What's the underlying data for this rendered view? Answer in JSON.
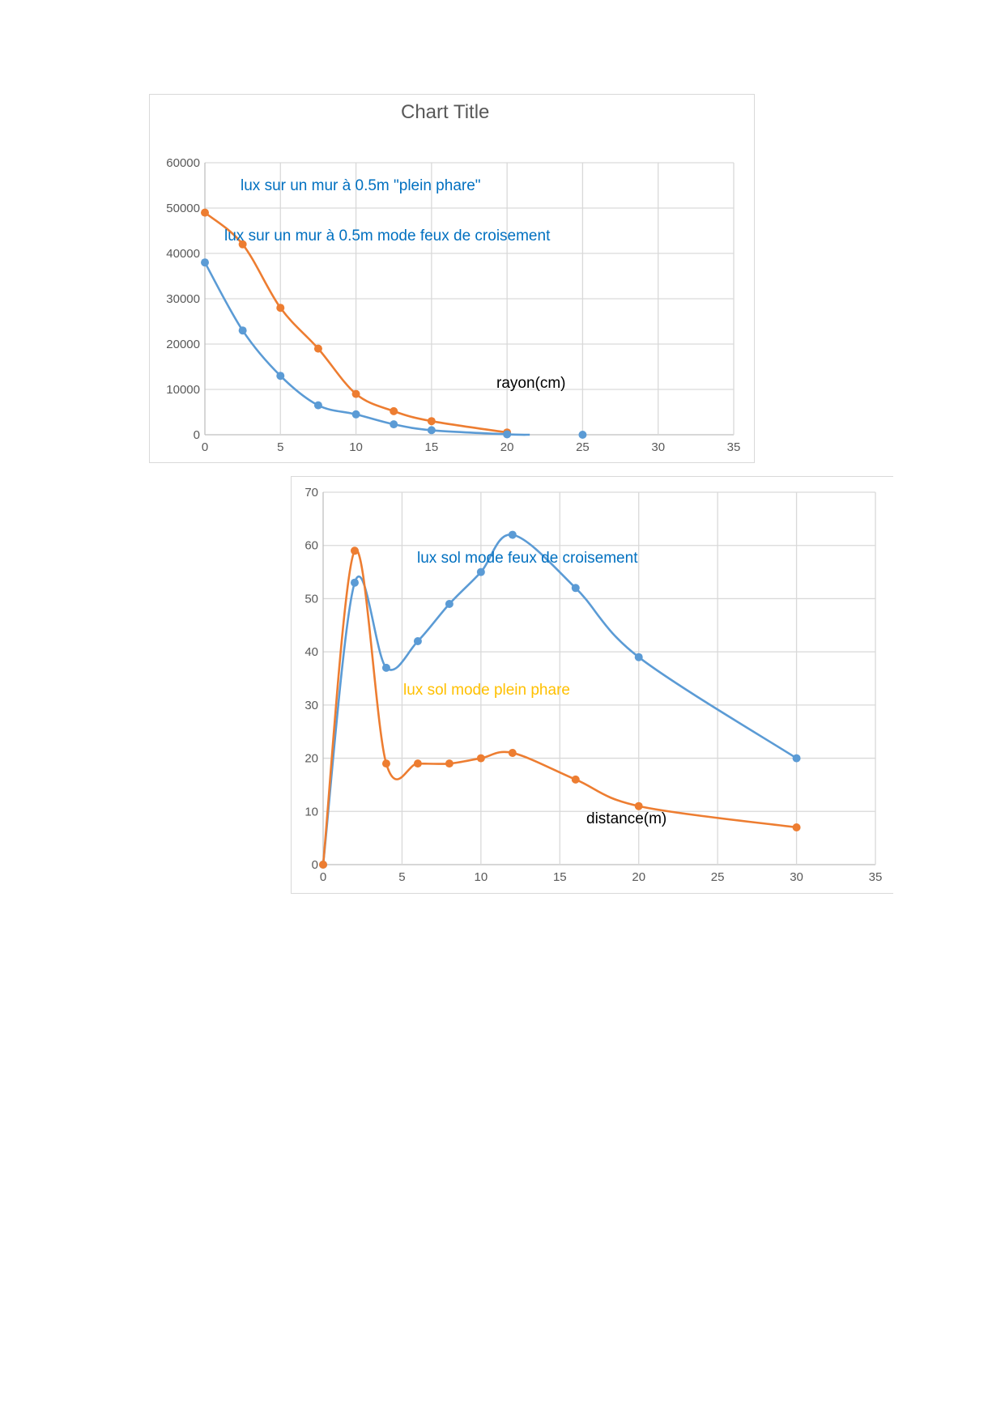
{
  "chart_data": [
    {
      "type": "line",
      "title": "Chart Title",
      "xlabel": "rayon(cm)",
      "ylabel": "",
      "xlim": [
        0,
        35
      ],
      "ylim": [
        0,
        60000
      ],
      "xticks": [
        0,
        5,
        10,
        15,
        20,
        25,
        30,
        35
      ],
      "yticks": [
        0,
        10000,
        20000,
        30000,
        40000,
        50000,
        60000
      ],
      "grid": true,
      "smooth": true,
      "series": [
        {
          "name": "lux sur un mur à 0.5m \"plein phare\"",
          "color": "#ED7D31",
          "x": [
            0,
            2.5,
            5,
            7.5,
            10,
            12.5,
            15,
            20
          ],
          "y": [
            49000,
            42000,
            28000,
            19000,
            9000,
            5200,
            3000,
            500
          ]
        },
        {
          "name": "lux sur un mur à 0.5m mode feux de croisement",
          "color": "#5B9BD5",
          "x": [
            0,
            2.5,
            5,
            7.5,
            10,
            12.5,
            15,
            20,
            25
          ],
          "y": [
            38000,
            23000,
            13000,
            6500,
            4500,
            2300,
            1000,
            100,
            0
          ]
        }
      ],
      "annotations": {
        "a1": "lux sur un mur à 0.5m \"plein phare\"",
        "a2": "lux sur un mur à 0.5m mode feux de croisement",
        "xlabel": "rayon(cm)"
      }
    },
    {
      "type": "line",
      "title": "",
      "xlabel": "distance(m)",
      "ylabel": "",
      "xlim": [
        0,
        35
      ],
      "ylim": [
        0,
        70
      ],
      "xticks": [
        0,
        5,
        10,
        15,
        20,
        25,
        30,
        35
      ],
      "yticks": [
        0,
        10,
        20,
        30,
        40,
        50,
        60,
        70
      ],
      "grid": true,
      "smooth": true,
      "series": [
        {
          "name": "lux sol mode feux de croisement",
          "color": "#5B9BD5",
          "x": [
            0,
            2,
            4,
            6,
            8,
            10,
            12,
            16,
            20,
            30
          ],
          "y": [
            0,
            53,
            37,
            42,
            49,
            55,
            62,
            52,
            39,
            20
          ]
        },
        {
          "name": "lux sol mode plein phare",
          "color": "#ED7D31",
          "x": [
            0,
            2,
            4,
            6,
            8,
            10,
            12,
            16,
            20,
            30
          ],
          "y": [
            0,
            59,
            19,
            19,
            19,
            20,
            21,
            16,
            11,
            7
          ]
        }
      ],
      "annotations": {
        "a1": "lux sol mode feux de croisement",
        "a2": "lux sol mode plein phare",
        "xlabel": "distance(m)"
      }
    }
  ],
  "colors": {
    "blue_text": "#0070C0",
    "yellow_text": "#FFC000",
    "grid": "#d9d9d9",
    "axis_text": "#595959"
  }
}
